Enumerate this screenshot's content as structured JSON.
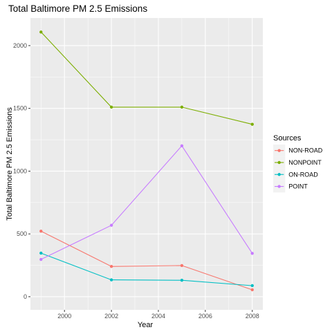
{
  "chart_data": {
    "type": "line",
    "title": "Total Baltimore PM 2.5 Emissions",
    "xlabel": "Year",
    "ylabel": "Total Baltimore PM 2.5 Emissions",
    "x": [
      1999,
      2002,
      2005,
      2008
    ],
    "xlim": [
      1998.55,
      2008.45
    ],
    "ylim": [
      -105,
      2220
    ],
    "xticks": [
      2000,
      2002,
      2004,
      2006,
      2008
    ],
    "yticks": [
      0,
      500,
      1000,
      1500,
      2000
    ],
    "grid": true,
    "legend": {
      "title": "Sources",
      "position": "right"
    },
    "series": [
      {
        "name": "NON-ROAD",
        "color": "#F8766D",
        "values": [
          522,
          241,
          248,
          55
        ]
      },
      {
        "name": "NONPOINT",
        "color": "#7CAE00",
        "values": [
          2108,
          1510,
          1510,
          1373
        ]
      },
      {
        "name": "ON-ROAD",
        "color": "#00BFC4",
        "values": [
          347,
          134,
          131,
          88
        ]
      },
      {
        "name": "POINT",
        "color": "#C77CFF",
        "values": [
          297,
          569,
          1202,
          345
        ]
      }
    ]
  },
  "colors": {
    "panel": "#EBEBEB",
    "grid_major": "#FFFFFF",
    "legend_key_bg": "#F2F2F2"
  }
}
